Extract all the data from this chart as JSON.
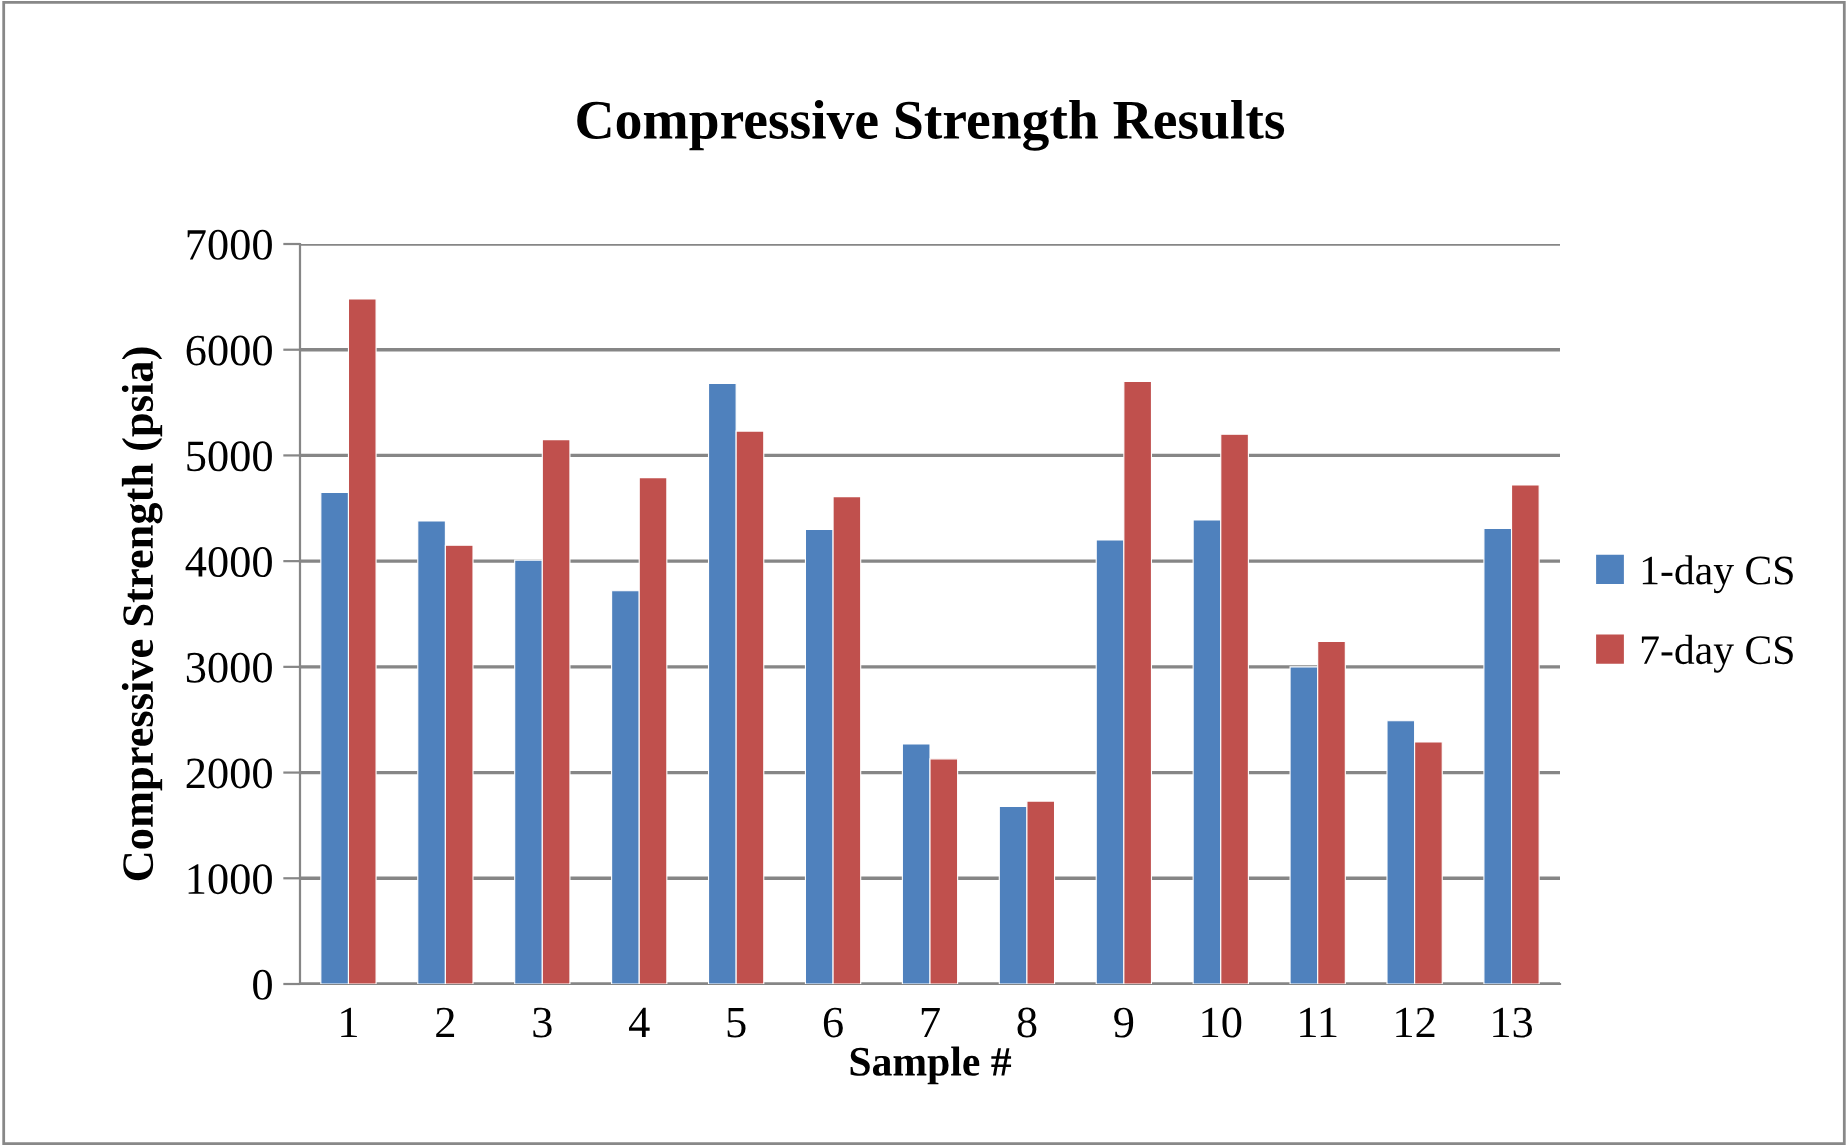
{
  "chart_data": {
    "type": "bar",
    "title": "Compressive Strength Results",
    "xlabel": "Sample #",
    "ylabel": "Compressive Strength (psia)",
    "categories": [
      "1",
      "2",
      "3",
      "4",
      "5",
      "6",
      "7",
      "8",
      "9",
      "10",
      "11",
      "12",
      "13"
    ],
    "series": [
      {
        "name": "1-day CS",
        "color": "#4f81bd",
        "values": [
          4650,
          4380,
          4010,
          3720,
          5680,
          4300,
          2270,
          1680,
          4200,
          4390,
          3000,
          2490,
          4310
        ]
      },
      {
        "name": "7-day CS",
        "color": "#c0504d",
        "values": [
          6480,
          4150,
          5150,
          4790,
          5230,
          4610,
          2130,
          1730,
          5700,
          5200,
          3240,
          2290,
          4720
        ]
      }
    ],
    "ylim": [
      0,
      7000
    ],
    "yticks": [
      0,
      1000,
      2000,
      3000,
      4000,
      5000,
      6000,
      7000
    ],
    "grid": "y",
    "legend": "right"
  }
}
